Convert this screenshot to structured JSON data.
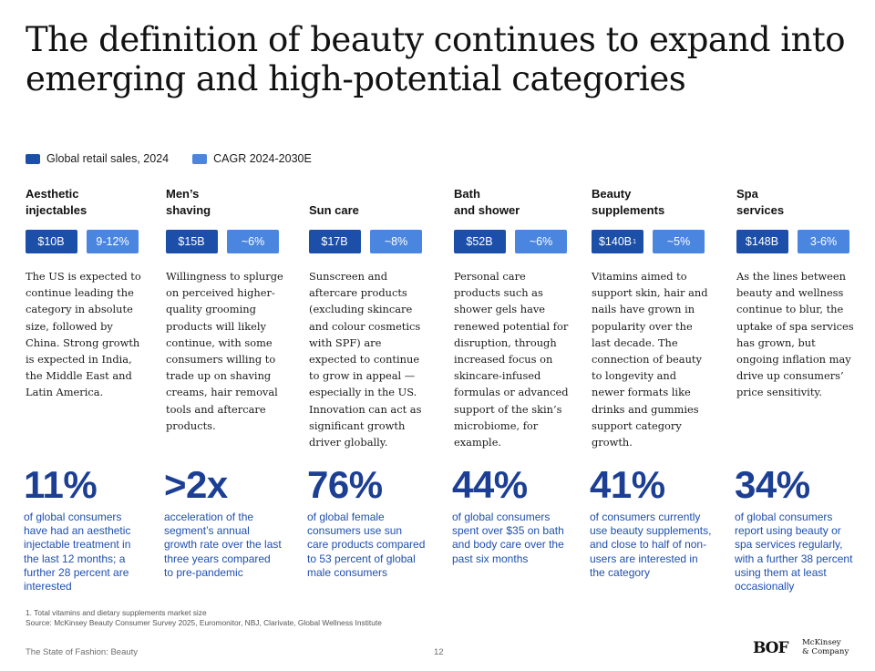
{
  "title": "The definition of beauty continues to expand into emerging and high-potential categories",
  "legend": {
    "sales": {
      "label": "Global retail sales, 2024",
      "color": "#1c4fa8"
    },
    "cagr": {
      "label": "CAGR 2024-2030E",
      "color": "#4a86e0"
    }
  },
  "categories": [
    {
      "name_line1": "Aesthetic",
      "name_line2": "injectables",
      "sales": "$10B",
      "sales_sup": "",
      "cagr": "9-12%",
      "description": "The US is expected to continue leading the category in absolute size, followed by China. Strong growth is expected in India, the Middle East and Latin America.",
      "stat": "11%",
      "stat_text": "of global consumers have had an aesthetic injectable treatment in the last 12 months; a further 28 percent are interested"
    },
    {
      "name_line1": "Men’s",
      "name_line2": "shaving",
      "sales": "$15B",
      "sales_sup": "",
      "cagr": "~6%",
      "description": "Willingness to splurge on perceived higher-quality grooming products will likely continue, with some consumers willing to trade up on shaving creams, hair removal tools and aftercare products.",
      "stat": ">2x",
      "stat_text": "acceleration of the segment’s annual growth rate over the last three years compared to pre-pandemic"
    },
    {
      "name_line1": "",
      "name_line2": "Sun care",
      "sales": "$17B",
      "sales_sup": "",
      "cagr": "~8%",
      "description": "Sunscreen and aftercare products (excluding skincare and colour cosmetics with SPF) are expected to continue to grow in appeal — especially in the US. Innovation can act as significant growth driver globally.",
      "stat": "76%",
      "stat_text": "of global female consumers use sun care products compared to 53 percent of global male consumers"
    },
    {
      "name_line1": "Bath",
      "name_line2": "and shower",
      "sales": "$52B",
      "sales_sup": "",
      "cagr": "~6%",
      "description": "Personal care products such as shower gels have renewed potential for disruption, through increased focus on skincare-infused formulas or advanced support of the skin’s microbiome, for example.",
      "stat": "44%",
      "stat_text": "of global consumers spent over $35 on bath and body care over the past six months"
    },
    {
      "name_line1": "Beauty",
      "name_line2": "supplements",
      "sales": "$140B",
      "sales_sup": "1",
      "cagr": "~5%",
      "description": "Vitamins aimed to support skin, hair and nails have grown in popularity over the last decade. The connection of beauty to longevity and newer formats like drinks and gummies support category growth.",
      "stat": "41%",
      "stat_text": "of consumers currently use beauty supplements, and close to half of non-users are interested in the category"
    },
    {
      "name_line1": "Spa",
      "name_line2": "services",
      "sales": "$148B",
      "sales_sup": "",
      "cagr": "3-6%",
      "description": "As the lines between beauty and wellness continue to blur, the uptake of spa services has grown, but ongoing inflation may drive up consumers’ price sensitivity.",
      "stat": "34%",
      "stat_text": "of global consumers report using beauty or spa services regularly, with a further 38 percent using them at least occasionally"
    }
  ],
  "footnote_1": "1. Total vitamins and dietary supplements market size",
  "source": "Source: McKinsey Beauty Consumer Survey 2025, Euromonitor, NBJ, Clarivate, Global Wellness Institute",
  "footer_left": "The State of Fashion: Beauty",
  "page_number": "12",
  "logo_bof": "BOF",
  "logo_mck_1": "McKinsey",
  "logo_mck_2": "& Company"
}
